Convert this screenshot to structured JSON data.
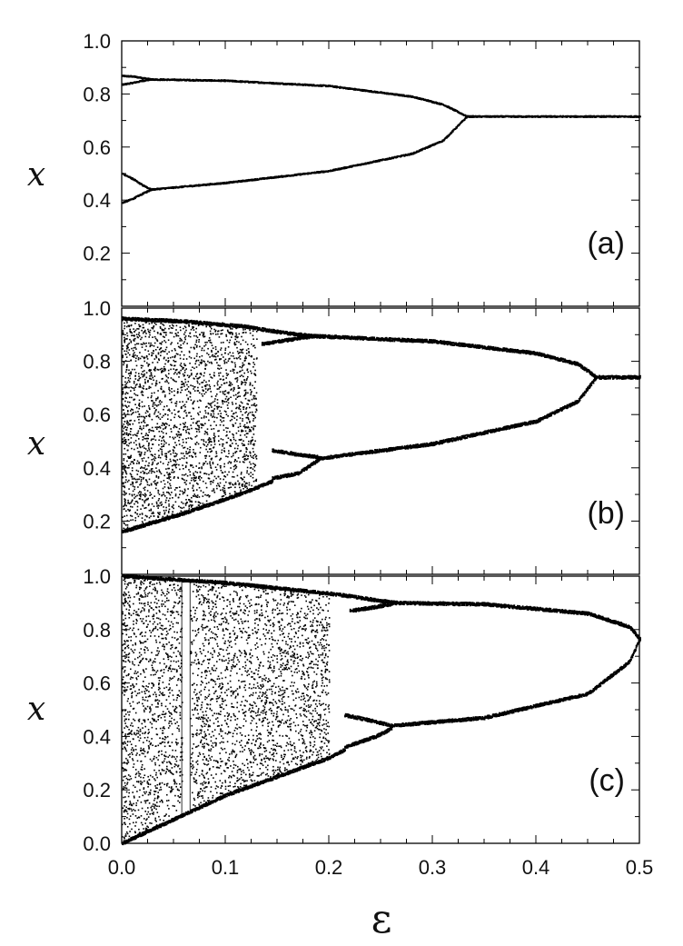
{
  "chart_data": [
    {
      "type": "scatter",
      "panel_label": "(a)",
      "ylabel": "x",
      "xlim": [
        0.0,
        0.5
      ],
      "ylim": [
        0.0,
        1.0
      ],
      "y_ticks": [
        "1.0",
        "0.8",
        "0.6",
        "0.4",
        "0.2"
      ],
      "grid": false,
      "branches": [
        {
          "x": [
            0.0,
            0.01,
            0.02,
            0.028
          ],
          "y": [
            0.868,
            0.866,
            0.86,
            0.855
          ]
        },
        {
          "x": [
            0.0,
            0.01,
            0.02,
            0.028
          ],
          "y": [
            0.835,
            0.842,
            0.85,
            0.855
          ]
        },
        {
          "x": [
            0.0,
            0.01,
            0.02,
            0.028
          ],
          "y": [
            0.5,
            0.48,
            0.455,
            0.44
          ]
        },
        {
          "x": [
            0.0,
            0.01,
            0.02,
            0.028
          ],
          "y": [
            0.39,
            0.405,
            0.425,
            0.44
          ]
        },
        {
          "x": [
            0.028,
            0.1,
            0.2,
            0.28,
            0.31,
            0.333
          ],
          "y": [
            0.855,
            0.85,
            0.83,
            0.79,
            0.76,
            0.715
          ]
        },
        {
          "x": [
            0.028,
            0.1,
            0.2,
            0.28,
            0.31,
            0.333
          ],
          "y": [
            0.44,
            0.465,
            0.51,
            0.575,
            0.625,
            0.715
          ]
        },
        {
          "x": [
            0.333,
            0.5
          ],
          "y": [
            0.715,
            0.715
          ]
        }
      ]
    },
    {
      "type": "scatter",
      "panel_label": "(b)",
      "ylabel": "x",
      "xlim": [
        0.0,
        0.5
      ],
      "ylim": [
        0.0,
        1.0
      ],
      "y_ticks": [
        "1.0",
        "0.8",
        "0.6",
        "0.4",
        "0.2"
      ],
      "grid": false,
      "chaos_end": 0.13,
      "branches": [
        {
          "x": [
            0.0,
            0.06,
            0.12,
            0.135
          ],
          "y": [
            0.96,
            0.95,
            0.93,
            0.92
          ]
        },
        {
          "x": [
            0.0,
            0.06,
            0.12,
            0.145
          ],
          "y": [
            0.16,
            0.23,
            0.31,
            0.35
          ]
        },
        {
          "x": [
            0.135,
            0.16,
            0.185
          ],
          "y": [
            0.92,
            0.905,
            0.895
          ]
        },
        {
          "x": [
            0.135,
            0.16,
            0.185
          ],
          "y": [
            0.865,
            0.88,
            0.895
          ]
        },
        {
          "x": [
            0.145,
            0.17,
            0.19
          ],
          "y": [
            0.465,
            0.45,
            0.44
          ]
        },
        {
          "x": [
            0.145,
            0.17,
            0.19
          ],
          "y": [
            0.36,
            0.38,
            0.43
          ]
        },
        {
          "x": [
            0.185,
            0.3,
            0.4,
            0.44,
            0.458
          ],
          "y": [
            0.895,
            0.875,
            0.83,
            0.79,
            0.74
          ]
        },
        {
          "x": [
            0.19,
            0.3,
            0.4,
            0.44,
            0.458
          ],
          "y": [
            0.435,
            0.49,
            0.575,
            0.65,
            0.74
          ]
        },
        {
          "x": [
            0.458,
            0.5
          ],
          "y": [
            0.74,
            0.74
          ]
        }
      ]
    },
    {
      "type": "scatter",
      "panel_label": "(c)",
      "ylabel": "x",
      "xlabel": "ε",
      "xlim": [
        0.0,
        0.5
      ],
      "ylim": [
        0.0,
        1.0
      ],
      "x_ticks": [
        "0.0",
        "0.1",
        "0.2",
        "0.3",
        "0.4",
        "0.5"
      ],
      "y_ticks": [
        "1.0",
        "0.8",
        "0.6",
        "0.4",
        "0.2",
        "0.0"
      ],
      "grid": false,
      "chaos_end": 0.2,
      "window": [
        0.058,
        0.066
      ],
      "branches": [
        {
          "x": [
            0.0,
            0.1,
            0.2,
            0.22
          ],
          "y": [
            1.0,
            0.975,
            0.935,
            0.925
          ]
        },
        {
          "x": [
            0.0,
            0.1,
            0.2,
            0.215
          ],
          "y": [
            0.0,
            0.18,
            0.32,
            0.35
          ]
        },
        {
          "x": [
            0.22,
            0.245,
            0.265
          ],
          "y": [
            0.925,
            0.91,
            0.9
          ]
        },
        {
          "x": [
            0.22,
            0.245,
            0.265
          ],
          "y": [
            0.87,
            0.885,
            0.9
          ]
        },
        {
          "x": [
            0.215,
            0.245,
            0.26
          ],
          "y": [
            0.48,
            0.455,
            0.44
          ]
        },
        {
          "x": [
            0.215,
            0.245,
            0.26
          ],
          "y": [
            0.36,
            0.4,
            0.43
          ]
        },
        {
          "x": [
            0.265,
            0.35,
            0.45,
            0.49,
            0.5
          ],
          "y": [
            0.9,
            0.895,
            0.86,
            0.81,
            0.765
          ]
        },
        {
          "x": [
            0.26,
            0.35,
            0.45,
            0.49,
            0.5
          ],
          "y": [
            0.44,
            0.47,
            0.56,
            0.68,
            0.765
          ]
        }
      ]
    }
  ]
}
